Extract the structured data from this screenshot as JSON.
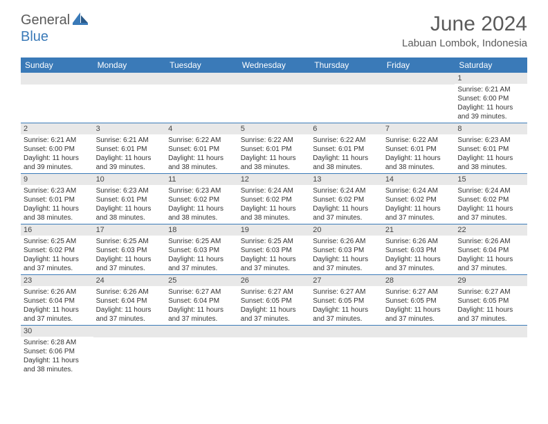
{
  "brand": {
    "general": "General",
    "blue": "Blue"
  },
  "title": "June 2024",
  "location": "Labuan Lombok, Indonesia",
  "colors": {
    "header_bg": "#3a7ab8",
    "header_text": "#ffffff",
    "daynum_bg": "#e8e8e8",
    "border": "#3a7ab8",
    "body_text": "#333333",
    "title_text": "#5a5a5a"
  },
  "typography": {
    "title_fontsize": 30,
    "location_fontsize": 15,
    "weekday_fontsize": 12,
    "daynum_fontsize": 11,
    "cell_fontsize": 10
  },
  "weekdays": [
    "Sunday",
    "Monday",
    "Tuesday",
    "Wednesday",
    "Thursday",
    "Friday",
    "Saturday"
  ],
  "weeks": [
    [
      null,
      null,
      null,
      null,
      null,
      null,
      {
        "n": "1",
        "sr": "6:21 AM",
        "ss": "6:00 PM",
        "dl": "11 hours and 39 minutes."
      }
    ],
    [
      {
        "n": "2",
        "sr": "6:21 AM",
        "ss": "6:00 PM",
        "dl": "11 hours and 39 minutes."
      },
      {
        "n": "3",
        "sr": "6:21 AM",
        "ss": "6:01 PM",
        "dl": "11 hours and 39 minutes."
      },
      {
        "n": "4",
        "sr": "6:22 AM",
        "ss": "6:01 PM",
        "dl": "11 hours and 38 minutes."
      },
      {
        "n": "5",
        "sr": "6:22 AM",
        "ss": "6:01 PM",
        "dl": "11 hours and 38 minutes."
      },
      {
        "n": "6",
        "sr": "6:22 AM",
        "ss": "6:01 PM",
        "dl": "11 hours and 38 minutes."
      },
      {
        "n": "7",
        "sr": "6:22 AM",
        "ss": "6:01 PM",
        "dl": "11 hours and 38 minutes."
      },
      {
        "n": "8",
        "sr": "6:23 AM",
        "ss": "6:01 PM",
        "dl": "11 hours and 38 minutes."
      }
    ],
    [
      {
        "n": "9",
        "sr": "6:23 AM",
        "ss": "6:01 PM",
        "dl": "11 hours and 38 minutes."
      },
      {
        "n": "10",
        "sr": "6:23 AM",
        "ss": "6:01 PM",
        "dl": "11 hours and 38 minutes."
      },
      {
        "n": "11",
        "sr": "6:23 AM",
        "ss": "6:02 PM",
        "dl": "11 hours and 38 minutes."
      },
      {
        "n": "12",
        "sr": "6:24 AM",
        "ss": "6:02 PM",
        "dl": "11 hours and 38 minutes."
      },
      {
        "n": "13",
        "sr": "6:24 AM",
        "ss": "6:02 PM",
        "dl": "11 hours and 37 minutes."
      },
      {
        "n": "14",
        "sr": "6:24 AM",
        "ss": "6:02 PM",
        "dl": "11 hours and 37 minutes."
      },
      {
        "n": "15",
        "sr": "6:24 AM",
        "ss": "6:02 PM",
        "dl": "11 hours and 37 minutes."
      }
    ],
    [
      {
        "n": "16",
        "sr": "6:25 AM",
        "ss": "6:02 PM",
        "dl": "11 hours and 37 minutes."
      },
      {
        "n": "17",
        "sr": "6:25 AM",
        "ss": "6:03 PM",
        "dl": "11 hours and 37 minutes."
      },
      {
        "n": "18",
        "sr": "6:25 AM",
        "ss": "6:03 PM",
        "dl": "11 hours and 37 minutes."
      },
      {
        "n": "19",
        "sr": "6:25 AM",
        "ss": "6:03 PM",
        "dl": "11 hours and 37 minutes."
      },
      {
        "n": "20",
        "sr": "6:26 AM",
        "ss": "6:03 PM",
        "dl": "11 hours and 37 minutes."
      },
      {
        "n": "21",
        "sr": "6:26 AM",
        "ss": "6:03 PM",
        "dl": "11 hours and 37 minutes."
      },
      {
        "n": "22",
        "sr": "6:26 AM",
        "ss": "6:04 PM",
        "dl": "11 hours and 37 minutes."
      }
    ],
    [
      {
        "n": "23",
        "sr": "6:26 AM",
        "ss": "6:04 PM",
        "dl": "11 hours and 37 minutes."
      },
      {
        "n": "24",
        "sr": "6:26 AM",
        "ss": "6:04 PM",
        "dl": "11 hours and 37 minutes."
      },
      {
        "n": "25",
        "sr": "6:27 AM",
        "ss": "6:04 PM",
        "dl": "11 hours and 37 minutes."
      },
      {
        "n": "26",
        "sr": "6:27 AM",
        "ss": "6:05 PM",
        "dl": "11 hours and 37 minutes."
      },
      {
        "n": "27",
        "sr": "6:27 AM",
        "ss": "6:05 PM",
        "dl": "11 hours and 37 minutes."
      },
      {
        "n": "28",
        "sr": "6:27 AM",
        "ss": "6:05 PM",
        "dl": "11 hours and 37 minutes."
      },
      {
        "n": "29",
        "sr": "6:27 AM",
        "ss": "6:05 PM",
        "dl": "11 hours and 37 minutes."
      }
    ],
    [
      {
        "n": "30",
        "sr": "6:28 AM",
        "ss": "6:06 PM",
        "dl": "11 hours and 38 minutes."
      },
      null,
      null,
      null,
      null,
      null,
      null
    ]
  ],
  "labels": {
    "sunrise": "Sunrise:",
    "sunset": "Sunset:",
    "daylight": "Daylight:"
  }
}
